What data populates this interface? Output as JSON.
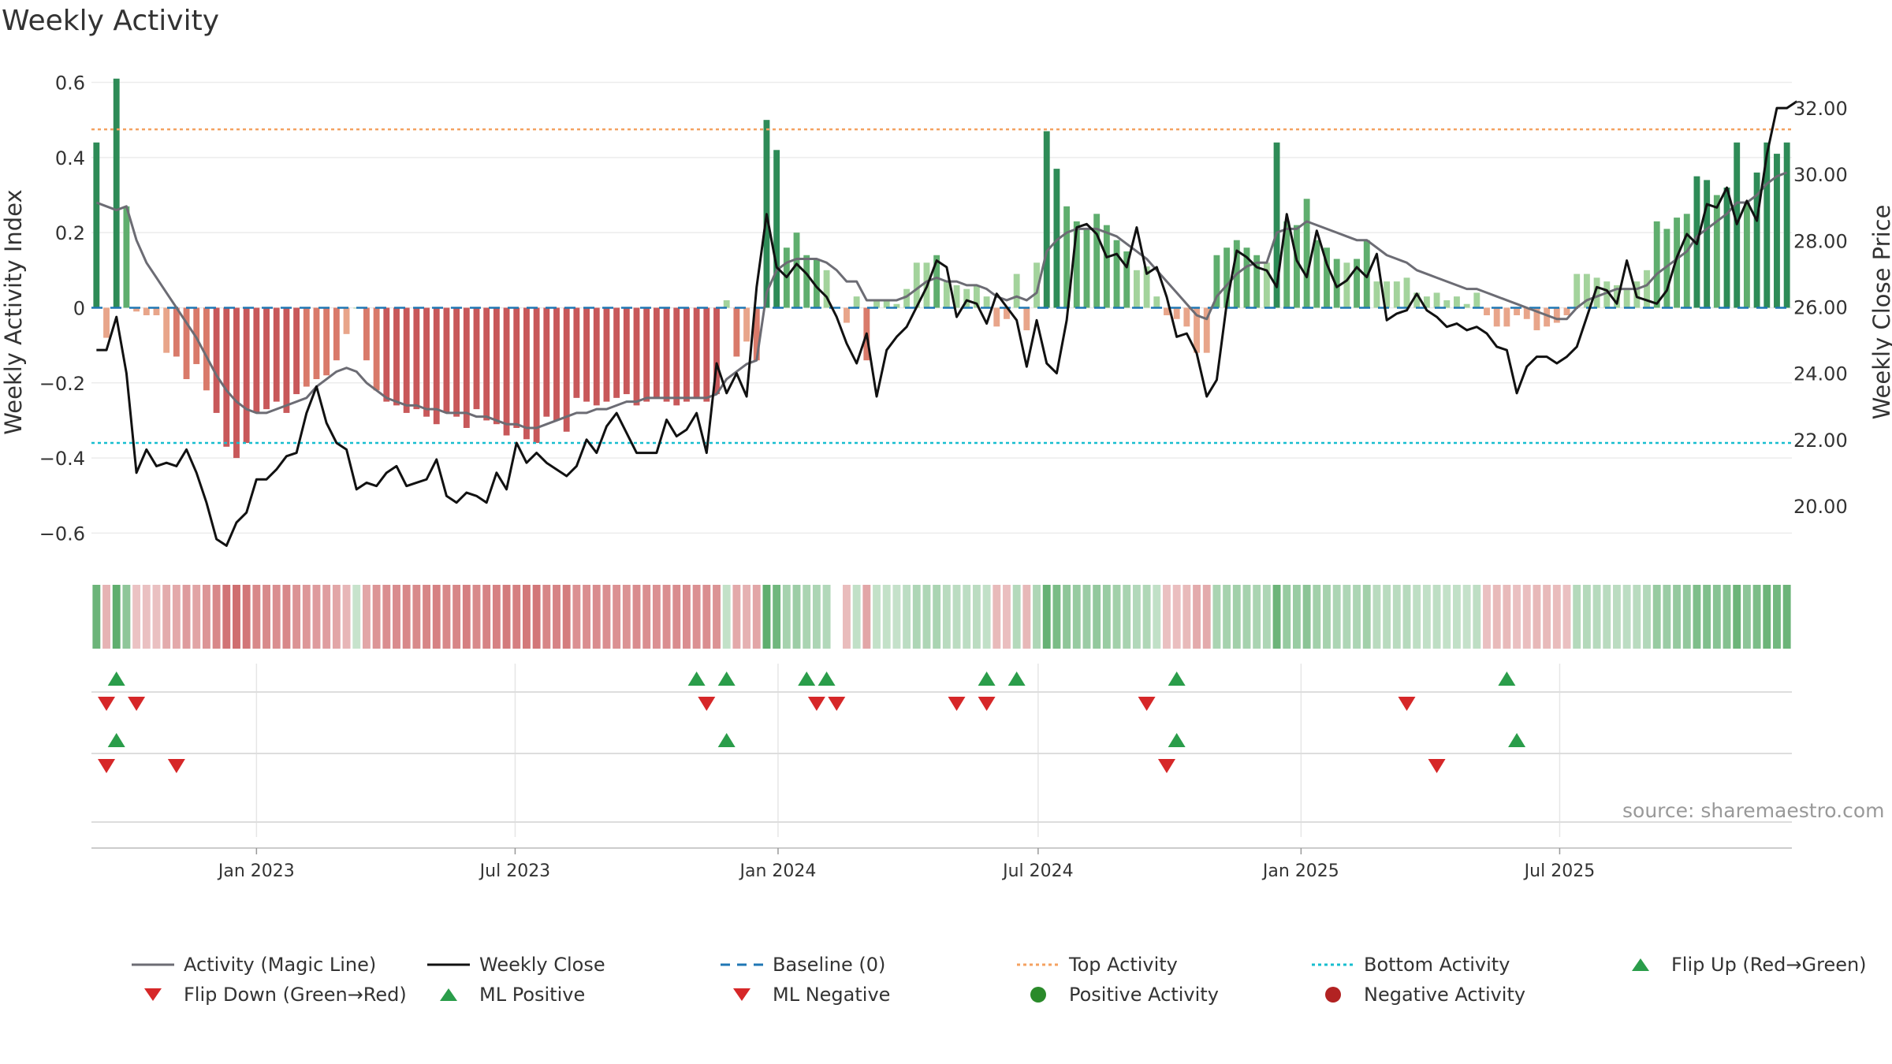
{
  "chart_data": {
    "type": "bar",
    "title": "Weekly Activity",
    "ylabel": "Weekly Activity Index",
    "y2label": "Weekly Close Price",
    "source": "source: sharemaestro.com",
    "x_start": "2022-09-11",
    "week_days": 7,
    "ylim": [
      -0.66,
      0.62
    ],
    "yticks": [
      -0.6,
      -0.4,
      -0.2,
      0,
      0.2,
      0.4,
      0.6
    ],
    "ytick_labels": [
      "−0.6",
      "−0.4",
      "−0.2",
      "0",
      "0.2",
      "0.4",
      "0.6"
    ],
    "y2lim": [
      18.5,
      33.0
    ],
    "y2ticks": [
      20,
      22,
      24,
      26,
      28,
      30,
      32
    ],
    "y2tick_labels": [
      "20.00",
      "22.00",
      "24.00",
      "26.00",
      "28.00",
      "30.00",
      "32.00"
    ],
    "xticks": [
      "2023-01-01",
      "2023-07-01",
      "2024-01-01",
      "2024-07-01",
      "2025-01-01",
      "2025-07-01"
    ],
    "xtick_labels": [
      "Jan 2023",
      "Jul 2023",
      "Jan 2024",
      "Jul 2024",
      "Jan 2025",
      "Jul 2025"
    ],
    "top_activity": 0.475,
    "bottom_activity": -0.36,
    "baseline": 0,
    "activity": [
      0.44,
      -0.08,
      0.61,
      0.27,
      -0.01,
      -0.02,
      -0.02,
      -0.12,
      -0.13,
      -0.19,
      -0.15,
      -0.22,
      -0.28,
      -0.37,
      -0.4,
      -0.36,
      -0.28,
      -0.27,
      -0.25,
      -0.28,
      -0.23,
      -0.21,
      -0.19,
      -0.18,
      -0.14,
      -0.07,
      0,
      -0.14,
      -0.22,
      -0.25,
      -0.26,
      -0.28,
      -0.27,
      -0.29,
      -0.31,
      -0.28,
      -0.29,
      -0.32,
      -0.27,
      -0.3,
      -0.31,
      -0.34,
      -0.32,
      -0.35,
      -0.36,
      -0.29,
      -0.3,
      -0.33,
      -0.24,
      -0.25,
      -0.26,
      -0.25,
      -0.24,
      -0.23,
      -0.26,
      -0.25,
      -0.24,
      -0.25,
      -0.26,
      -0.25,
      -0.24,
      -0.25,
      -0.23,
      0.02,
      -0.13,
      -0.09,
      -0.14,
      0.5,
      0.42,
      0.16,
      0.2,
      0.14,
      0.13,
      0.1,
      0.05,
      -0.04,
      0.03,
      -0.14,
      0.02,
      0.02,
      0.01,
      0.05,
      0.12,
      0.12,
      0.14,
      0.07,
      0.06,
      0.05,
      0.06,
      0.03,
      -0.05,
      -0.03,
      0.09,
      -0.06,
      0.12,
      0.47,
      0.37,
      0.27,
      0.23,
      0.21,
      0.25,
      0.22,
      0.18,
      0.15,
      0.1,
      0.11,
      0.03,
      -0.02,
      -0.03,
      -0.05,
      -0.12,
      -0.12,
      0.14,
      0.16,
      0.18,
      0.16,
      0.14,
      0.12,
      0.44,
      0.23,
      0.22,
      0.29,
      0.18,
      0.16,
      0.13,
      0.12,
      0.13,
      0.18,
      0.07,
      0.07,
      0.07,
      0.08,
      0.04,
      0.03,
      0.04,
      0.02,
      0.03,
      0.01,
      0.04,
      -0.02,
      -0.05,
      -0.05,
      -0.02,
      -0.03,
      -0.06,
      -0.05,
      -0.04,
      -0.02,
      0.09,
      0.09,
      0.08,
      0.07,
      0.06,
      0.05,
      0.07,
      0.1,
      0.23,
      0.21,
      0.24,
      0.25,
      0.35,
      0.34,
      0.3,
      0.32,
      0.44,
      0.28,
      0.36,
      0.44,
      0.41,
      0.44
    ],
    "magic_line": [
      0.28,
      0.27,
      0.26,
      0.27,
      0.18,
      0.12,
      0.08,
      0.04,
      0,
      -0.04,
      -0.08,
      -0.13,
      -0.18,
      -0.22,
      -0.25,
      -0.27,
      -0.28,
      -0.28,
      -0.27,
      -0.26,
      -0.25,
      -0.24,
      -0.21,
      -0.19,
      -0.17,
      -0.16,
      -0.17,
      -0.2,
      -0.22,
      -0.24,
      -0.25,
      -0.26,
      -0.26,
      -0.27,
      -0.27,
      -0.28,
      -0.28,
      -0.28,
      -0.29,
      -0.29,
      -0.3,
      -0.31,
      -0.31,
      -0.32,
      -0.32,
      -0.31,
      -0.3,
      -0.29,
      -0.28,
      -0.28,
      -0.27,
      -0.27,
      -0.26,
      -0.25,
      -0.25,
      -0.24,
      -0.24,
      -0.24,
      -0.24,
      -0.24,
      -0.24,
      -0.24,
      -0.23,
      -0.19,
      -0.17,
      -0.15,
      -0.14,
      0.04,
      0.1,
      0.12,
      0.13,
      0.13,
      0.13,
      0.12,
      0.1,
      0.07,
      0.07,
      0.02,
      0.02,
      0.02,
      0.02,
      0.03,
      0.05,
      0.07,
      0.08,
      0.07,
      0.07,
      0.06,
      0.06,
      0.05,
      0.03,
      0.02,
      0.03,
      0.02,
      0.04,
      0.15,
      0.18,
      0.2,
      0.21,
      0.21,
      0.21,
      0.2,
      0.19,
      0.17,
      0.15,
      0.13,
      0.1,
      0.07,
      0.04,
      0.01,
      -0.02,
      -0.03,
      0.03,
      0.06,
      0.09,
      0.11,
      0.12,
      0.12,
      0.2,
      0.21,
      0.21,
      0.23,
      0.22,
      0.21,
      0.2,
      0.19,
      0.18,
      0.18,
      0.16,
      0.14,
      0.13,
      0.12,
      0.1,
      0.09,
      0.08,
      0.07,
      0.06,
      0.05,
      0.05,
      0.04,
      0.03,
      0.02,
      0.01,
      0,
      -0.01,
      -0.02,
      -0.03,
      -0.03,
      0,
      0.02,
      0.03,
      0.04,
      0.05,
      0.05,
      0.05,
      0.06,
      0.09,
      0.11,
      0.13,
      0.15,
      0.19,
      0.21,
      0.23,
      0.25,
      0.28,
      0.28,
      0.3,
      0.33,
      0.35,
      0.36
    ],
    "weekly_close": [
      24.7,
      24.7,
      25.7,
      24,
      21,
      21.7,
      21.2,
      21.3,
      21.2,
      21.7,
      21,
      20.1,
      19,
      18.8,
      19.5,
      19.8,
      20.8,
      20.8,
      21.1,
      21.5,
      21.6,
      22.8,
      23.6,
      22.5,
      21.9,
      21.7,
      20.5,
      20.7,
      20.6,
      21,
      21.2,
      20.6,
      20.7,
      20.8,
      21.4,
      20.3,
      20.1,
      20.4,
      20.3,
      20.1,
      21,
      20.5,
      21.9,
      21.3,
      21.6,
      21.3,
      21.1,
      20.9,
      21.2,
      22,
      21.6,
      22.4,
      22.8,
      22.2,
      21.6,
      21.6,
      21.6,
      22.6,
      22.1,
      22.3,
      22.8,
      21.6,
      24.3,
      23.4,
      24,
      23.3,
      26.6,
      28.8,
      27.2,
      26.9,
      27.3,
      27,
      26.6,
      26.3,
      25.7,
      24.9,
      24.3,
      25.2,
      23.3,
      24.7,
      25.1,
      25.4,
      26,
      26.6,
      27.4,
      27.2,
      25.7,
      26.2,
      26.1,
      25.5,
      26.4,
      26,
      25.6,
      24.2,
      25.6,
      24.3,
      24,
      25.6,
      28.4,
      28.5,
      28.2,
      27.5,
      27.6,
      27.2,
      28.4,
      27,
      27.2,
      26.3,
      25.1,
      25.2,
      24.6,
      23.3,
      23.8,
      26.1,
      27.7,
      27.5,
      27.2,
      27.1,
      26.6,
      28.8,
      27.4,
      26.9,
      28.3,
      27.3,
      26.6,
      26.8,
      27.2,
      26.9,
      27.6,
      25.6,
      25.8,
      25.9,
      26.4,
      25.9,
      25.7,
      25.4,
      25.5,
      25.3,
      25.4,
      25.2,
      24.8,
      24.7,
      23.4,
      24.2,
      24.5,
      24.5,
      24.3,
      24.5,
      24.8,
      25.7,
      26.6,
      26.5,
      26.1,
      27.4,
      26.3,
      26.2,
      26.1,
      26.5,
      27.5,
      28.2,
      27.9,
      29.1,
      29,
      29.6,
      28.5,
      29.2,
      28.6,
      30.6,
      32,
      32,
      32.2
    ],
    "flip_up": [
      "2022-09-25",
      "2023-11-05",
      "2023-11-26",
      "2024-01-21",
      "2024-02-04",
      "2024-05-26",
      "2024-06-16",
      "2024-10-06",
      "2025-05-25"
    ],
    "flip_down": [
      "2022-09-18",
      "2022-10-09",
      "2023-11-12",
      "2024-01-28",
      "2024-02-11",
      "2024-05-05",
      "2024-05-26",
      "2024-09-15",
      "2025-03-16"
    ],
    "ml_positive": [
      "2022-09-25",
      "2023-11-26",
      "2024-10-06",
      "2025-06-01"
    ],
    "ml_negative": [
      "2022-09-18",
      "2022-11-06",
      "2024-09-29",
      "2025-04-06"
    ],
    "missing_weeks": [
      74
    ],
    "colors": {
      "pos_strong": "#2e8b57",
      "pos_mid": "#5fae6e",
      "pos_weak": "#a3d39c",
      "neg_strong": "#c8585a",
      "neg_mid": "#d97a6a",
      "neg_weak": "#e8a58a",
      "magic_line": "#6c6c74",
      "weekly_close": "#111111",
      "baseline": "#1f77b4",
      "top_activity": "#f4a261",
      "bottom_activity": "#17becf",
      "flip_up": "#2a9d4a",
      "flip_down": "#d62728"
    },
    "legend": [
      {
        "label": "Activity (Magic Line)",
        "symbol": "line",
        "color": "#6c6c74"
      },
      {
        "label": "Weekly Close",
        "symbol": "line",
        "color": "#111111"
      },
      {
        "label": "Baseline (0)",
        "symbol": "dashed",
        "color": "#1f77b4"
      },
      {
        "label": "Top Activity",
        "symbol": "dotted",
        "color": "#f4a261"
      },
      {
        "label": "Bottom Activity",
        "symbol": "dotted",
        "color": "#17becf"
      },
      {
        "label": "Flip Up (Red→Green)",
        "symbol": "triangle-up",
        "color": "#2a9d4a"
      },
      {
        "label": "Flip Down (Green→Red)",
        "symbol": "triangle-down",
        "color": "#d62728"
      },
      {
        "label": "ML Positive",
        "symbol": "triangle-up",
        "color": "#2a9d4a"
      },
      {
        "label": "ML Negative",
        "symbol": "triangle-down",
        "color": "#d62728"
      },
      {
        "label": "Positive Activity",
        "symbol": "circle",
        "color": "#2a8a2a"
      },
      {
        "label": "Negative Activity",
        "symbol": "circle",
        "color": "#b22222"
      }
    ]
  }
}
